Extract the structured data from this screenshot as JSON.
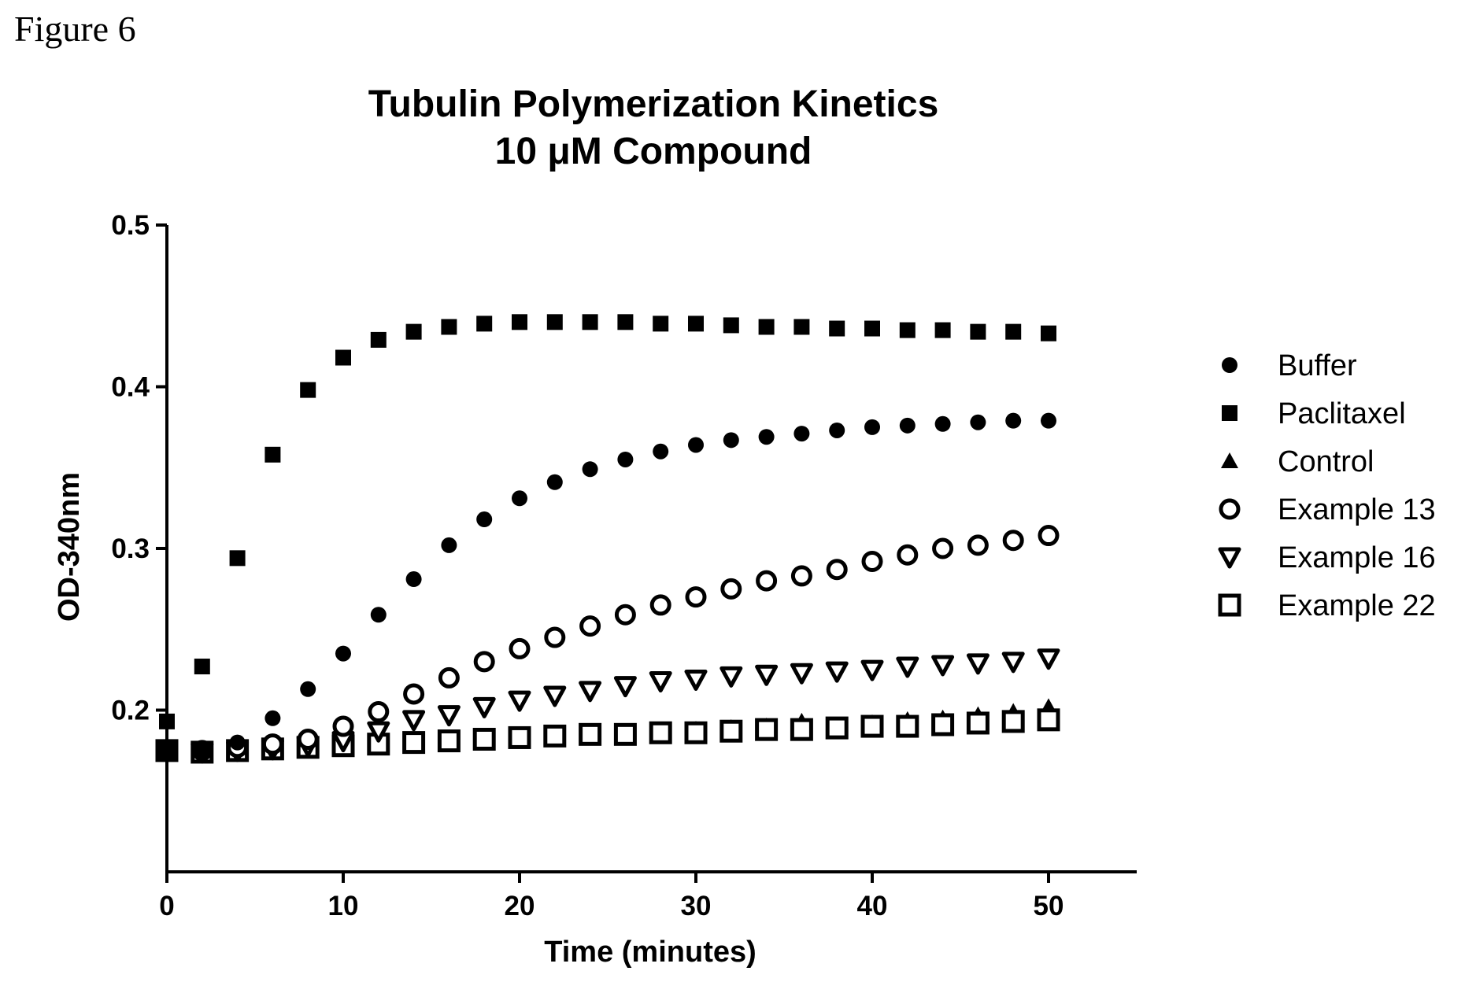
{
  "figure_label": "Figure 6",
  "chart_data": {
    "type": "scatter",
    "title": "Tubulin Polymerization Kinetics",
    "subtitle": "10 μM Compound",
    "xlabel": "Time (minutes)",
    "ylabel": "OD-340nm",
    "xlim": [
      0,
      55
    ],
    "ylim": [
      0.1,
      0.5
    ],
    "xticks": [
      0,
      10,
      20,
      30,
      40,
      50
    ],
    "yticks": [
      0.2,
      0.3,
      0.4,
      0.5
    ],
    "ytick_labels": [
      "0.2",
      "0.3",
      "0.4",
      "0.5"
    ],
    "grid": false,
    "legend_position": "right",
    "x": [
      0,
      2,
      4,
      6,
      8,
      10,
      12,
      14,
      16,
      18,
      20,
      22,
      24,
      26,
      28,
      30,
      32,
      34,
      36,
      38,
      40,
      42,
      44,
      46,
      48,
      50
    ],
    "series": [
      {
        "name": "Buffer",
        "marker": "filled-circle",
        "values": [
          0.175,
          0.175,
          0.18,
          0.195,
          0.213,
          0.235,
          0.259,
          0.281,
          0.302,
          0.318,
          0.331,
          0.341,
          0.349,
          0.355,
          0.36,
          0.364,
          0.367,
          0.369,
          0.371,
          0.373,
          0.375,
          0.376,
          0.377,
          0.378,
          0.379,
          0.379
        ]
      },
      {
        "name": "Paclitaxel",
        "marker": "filled-square",
        "values": [
          0.193,
          0.227,
          0.294,
          0.358,
          0.398,
          0.418,
          0.429,
          0.434,
          0.437,
          0.439,
          0.44,
          0.44,
          0.44,
          0.44,
          0.439,
          0.439,
          0.438,
          0.437,
          0.437,
          0.436,
          0.436,
          0.435,
          0.435,
          0.434,
          0.434,
          0.433
        ]
      },
      {
        "name": "Control",
        "marker": "filled-triangle",
        "values": [
          0.175,
          0.174,
          0.175,
          0.176,
          0.177,
          0.178,
          0.179,
          0.18,
          0.181,
          0.182,
          0.183,
          0.184,
          0.185,
          0.186,
          0.187,
          0.188,
          0.189,
          0.19,
          0.193,
          0.19,
          0.192,
          0.194,
          0.195,
          0.197,
          0.199,
          0.202
        ]
      },
      {
        "name": "Example 13",
        "marker": "open-circle",
        "values": [
          0.175,
          0.175,
          0.177,
          0.179,
          0.182,
          0.19,
          0.199,
          0.21,
          0.22,
          0.23,
          0.238,
          0.245,
          0.252,
          0.259,
          0.265,
          0.27,
          0.275,
          0.28,
          0.283,
          0.287,
          0.292,
          0.296,
          0.3,
          0.302,
          0.305,
          0.308
        ]
      },
      {
        "name": "Example 16",
        "marker": "open-triangle-down",
        "values": [
          0.175,
          0.174,
          0.175,
          0.176,
          0.178,
          0.181,
          0.187,
          0.194,
          0.197,
          0.202,
          0.206,
          0.209,
          0.212,
          0.215,
          0.218,
          0.219,
          0.221,
          0.222,
          0.223,
          0.224,
          0.225,
          0.227,
          0.228,
          0.229,
          0.23,
          0.232
        ]
      },
      {
        "name": "Example 22",
        "marker": "open-square",
        "values": [
          0.175,
          0.174,
          0.175,
          0.176,
          0.177,
          0.178,
          0.179,
          0.18,
          0.181,
          0.182,
          0.183,
          0.184,
          0.185,
          0.185,
          0.186,
          0.186,
          0.187,
          0.188,
          0.188,
          0.189,
          0.19,
          0.19,
          0.191,
          0.192,
          0.193,
          0.194
        ]
      }
    ]
  }
}
